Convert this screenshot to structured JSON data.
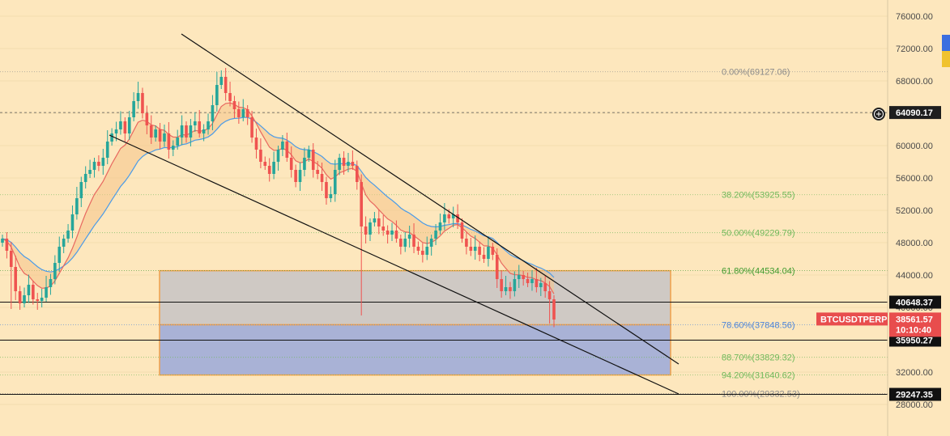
{
  "chart_data": {
    "type": "candlestick",
    "symbol": "BTCUSDTPERP",
    "last_price": "38561.57",
    "countdown": "10:10:40",
    "ylim": [
      26000,
      78000
    ],
    "y_ticks": [
      "76000.00",
      "72000.00",
      "68000.00",
      "64000.00",
      "60000.00",
      "56000.00",
      "52000.00",
      "48000.00",
      "44000.00",
      "40000.00",
      "36000.00",
      "32000.00",
      "28000.00"
    ],
    "y_tick_values": [
      76000,
      72000,
      68000,
      64000,
      60000,
      56000,
      52000,
      48000,
      44000,
      40000,
      36000,
      32000,
      28000
    ],
    "crosshair_price": "64090.17",
    "horizontal_levels": [
      {
        "label": "40648.37",
        "value": 40648.37
      },
      {
        "label": "35950.27",
        "value": 35950.27
      },
      {
        "label": "29247.35",
        "value": 29247.35
      }
    ],
    "fib_levels": [
      {
        "label": "0.00%(69127.06)",
        "value": 69127.06,
        "color": "#8a8a8a"
      },
      {
        "label": "38.20%(53925.55)",
        "value": 53925.55,
        "color": "#6fb85a"
      },
      {
        "label": "50.00%(49229.79)",
        "value": 49229.79,
        "color": "#6fb85a"
      },
      {
        "label": "61.80%(44534.04)",
        "value": 44534.04,
        "color": "#3e9a2e"
      },
      {
        "label": "78.60%(37848.56)",
        "value": 37848.56,
        "color": "#4b84d9"
      },
      {
        "label": "88.70%(33829.32)",
        "value": 33829.32,
        "color": "#6fb85a"
      },
      {
        "label": "94.20%(31640.62)",
        "value": 31640.62,
        "color": "#6fb85a"
      },
      {
        "label": "100.00%(29332.53)",
        "value": 29332.53,
        "color": "#8a8a8a"
      }
    ],
    "zone_upper": [
      37848.56,
      44534.04
    ],
    "zone_lower": [
      31640.62,
      37848.56
    ],
    "colors": {
      "up": "#26a69a",
      "down": "#ef5350",
      "ema_fast": "#e8685f",
      "ema_slow": "#4a9be8",
      "label_bg": "#e84d4d"
    },
    "seed_close": 48000,
    "closes": [
      48500,
      47000,
      45000,
      42000,
      40500,
      41500,
      42800,
      41000,
      40800,
      41200,
      42500,
      43500,
      45500,
      47500,
      48500,
      49500,
      51500,
      53500,
      55500,
      56500,
      57000,
      58000,
      57500,
      58500,
      60500,
      61500,
      62000,
      63000,
      61500,
      63500,
      65500,
      66500,
      64000,
      62500,
      61000,
      62000,
      60500,
      61500,
      59500,
      60000,
      61000,
      62500,
      61000,
      62500,
      63000,
      61500,
      62000,
      63000,
      65000,
      67500,
      68500,
      66500,
      65500,
      64500,
      63500,
      64500,
      63500,
      61000,
      59500,
      58000,
      57500,
      56500,
      58000,
      59500,
      60500,
      58500,
      57000,
      55500,
      57000,
      58500,
      59500,
      57000,
      56500,
      55500,
      53500,
      54000,
      57000,
      58500,
      57500,
      58000,
      57500,
      55500,
      50000,
      49000,
      50500,
      51000,
      50000,
      49500,
      49000,
      49500,
      48500,
      47500,
      48500,
      49000,
      47500,
      47000,
      46500,
      47500,
      48500,
      49500,
      50500,
      51500,
      51000,
      51500,
      50500,
      48500,
      47500,
      47000,
      47500,
      46500,
      46000,
      47500,
      46500,
      43500,
      42000,
      42500,
      42000,
      43500,
      44000,
      43500,
      43000,
      43500,
      42500,
      43000,
      42000,
      41000,
      38500
    ]
  }
}
